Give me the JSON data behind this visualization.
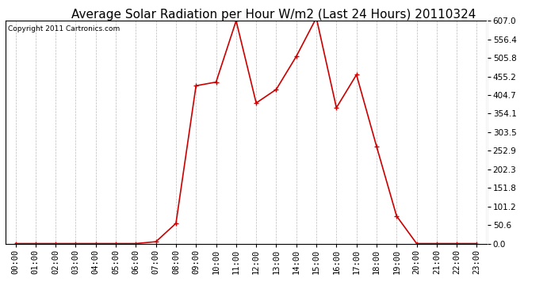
{
  "title": "Average Solar Radiation per Hour W/m2 (Last 24 Hours) 20110324",
  "copyright": "Copyright 2011 Cartronics.com",
  "hours": [
    "00:00",
    "01:00",
    "02:00",
    "03:00",
    "04:00",
    "05:00",
    "06:00",
    "07:00",
    "08:00",
    "09:00",
    "10:00",
    "11:00",
    "12:00",
    "13:00",
    "14:00",
    "15:00",
    "16:00",
    "17:00",
    "18:00",
    "19:00",
    "20:00",
    "21:00",
    "22:00",
    "23:00"
  ],
  "values": [
    0,
    0,
    0,
    0,
    0,
    0,
    0,
    5,
    55,
    430,
    440,
    607,
    383,
    420,
    510,
    615,
    370,
    460,
    265,
    75,
    0,
    0,
    0,
    0
  ],
  "line_color": "#cc0000",
  "marker": "+",
  "marker_size": 5,
  "marker_linewidth": 1.0,
  "line_width": 1.2,
  "grid_color": "#bbbbbb",
  "background_color": "#ffffff",
  "plot_bg_color": "#ffffff",
  "ymin": 0.0,
  "ymax": 607.0,
  "ytick_values": [
    0.0,
    50.6,
    101.2,
    151.8,
    202.3,
    252.9,
    303.5,
    354.1,
    404.7,
    455.2,
    505.8,
    556.4,
    607.0
  ],
  "title_fontsize": 11,
  "copyright_fontsize": 6.5,
  "tick_fontsize": 7.5
}
